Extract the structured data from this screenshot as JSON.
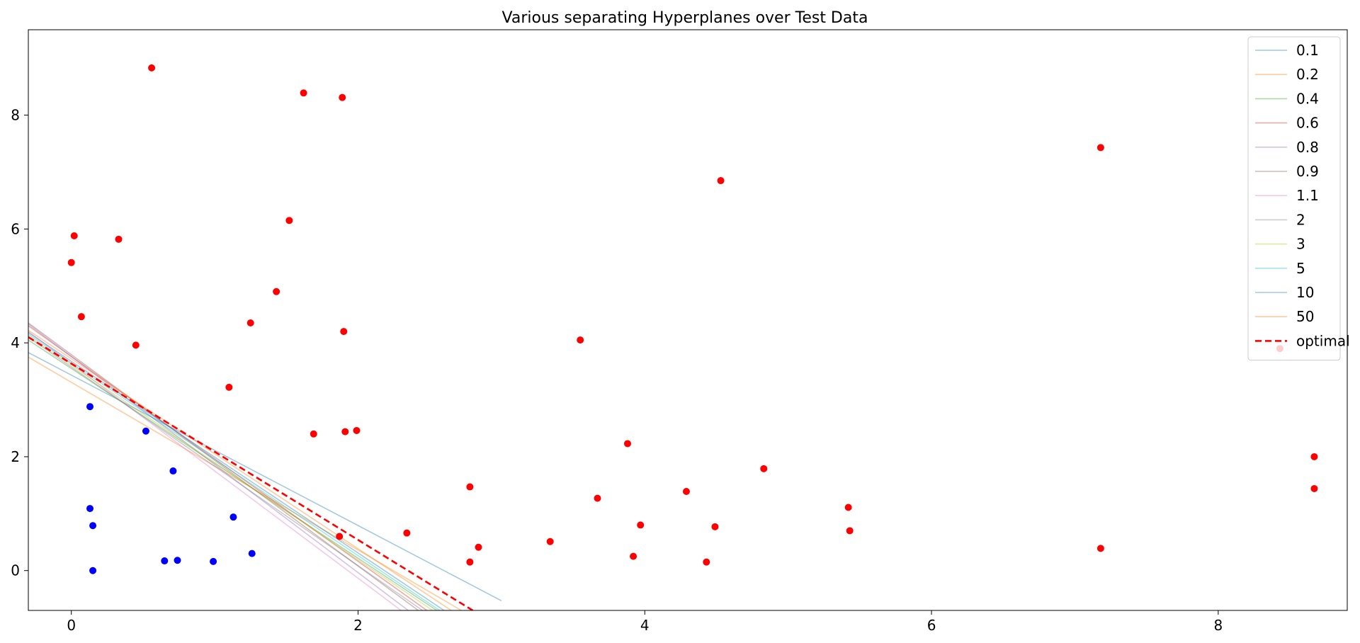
{
  "chart_data": {
    "type": "scatter",
    "title": "Various separating Hyperplanes over Test Data",
    "xlabel": "",
    "ylabel": "",
    "xlim": [
      -0.3,
      8.9
    ],
    "ylim": [
      -0.7,
      9.5
    ],
    "xticks": [
      0,
      2,
      4,
      6,
      8
    ],
    "yticks": [
      0,
      2,
      4,
      6,
      8
    ],
    "grid": false,
    "legend_position": "top-right",
    "points": {
      "blue_color": "#0000ff",
      "red_color": "#ff0000",
      "blue": [
        [
          0.13,
          2.88
        ],
        [
          0.52,
          2.45
        ],
        [
          0.71,
          1.75
        ],
        [
          0.13,
          1.09
        ],
        [
          0.15,
          0.79
        ],
        [
          0.15,
          0.0
        ],
        [
          0.65,
          0.17
        ],
        [
          0.74,
          0.18
        ],
        [
          0.99,
          0.16
        ],
        [
          1.13,
          0.94
        ],
        [
          1.26,
          0.3
        ]
      ],
      "red": [
        [
          0.56,
          8.83
        ],
        [
          1.62,
          8.39
        ],
        [
          1.89,
          8.31
        ],
        [
          0.02,
          5.88
        ],
        [
          0.33,
          5.82
        ],
        [
          0.0,
          5.41
        ],
        [
          0.07,
          4.46
        ],
        [
          1.52,
          6.15
        ],
        [
          1.43,
          4.9
        ],
        [
          1.25,
          4.35
        ],
        [
          1.9,
          4.2
        ],
        [
          0.45,
          3.96
        ],
        [
          1.1,
          3.22
        ],
        [
          1.69,
          2.4
        ],
        [
          1.91,
          2.44
        ],
        [
          1.99,
          2.46
        ],
        [
          1.87,
          0.6
        ],
        [
          2.34,
          0.66
        ],
        [
          2.78,
          1.47
        ],
        [
          2.78,
          0.15
        ],
        [
          2.84,
          0.41
        ],
        [
          3.34,
          0.51
        ],
        [
          3.55,
          4.05
        ],
        [
          3.67,
          1.27
        ],
        [
          3.88,
          2.23
        ],
        [
          3.92,
          0.25
        ],
        [
          3.97,
          0.8
        ],
        [
          4.29,
          1.39
        ],
        [
          4.43,
          0.15
        ],
        [
          4.49,
          0.77
        ],
        [
          4.53,
          6.85
        ],
        [
          4.83,
          1.79
        ],
        [
          5.42,
          1.11
        ],
        [
          5.43,
          0.7
        ],
        [
          7.18,
          7.43
        ],
        [
          7.18,
          0.39
        ],
        [
          8.43,
          3.9
        ],
        [
          8.67,
          2.0
        ],
        [
          8.67,
          1.44
        ]
      ]
    },
    "series": [
      {
        "name": "0.1",
        "color": "#1f77b4",
        "line": [
          [
            -0.3,
            3.83
          ],
          [
            3.0,
            -0.53
          ]
        ]
      },
      {
        "name": "0.2",
        "color": "#ff7f0e",
        "line": [
          [
            -0.3,
            3.75
          ],
          [
            2.72,
            -0.7
          ]
        ]
      },
      {
        "name": "0.4",
        "color": "#2ca02c",
        "line": [
          [
            -0.3,
            4.05
          ],
          [
            2.55,
            -0.7
          ]
        ]
      },
      {
        "name": "0.6",
        "color": "#d62728",
        "line": [
          [
            -0.3,
            4.3
          ],
          [
            2.48,
            -0.7
          ]
        ]
      },
      {
        "name": "0.8",
        "color": "#9467bd",
        "line": [
          [
            -0.3,
            4.33
          ],
          [
            2.35,
            -0.7
          ]
        ]
      },
      {
        "name": "0.9",
        "color": "#8c564b",
        "line": [
          [
            -0.3,
            4.35
          ],
          [
            2.42,
            -0.7
          ]
        ]
      },
      {
        "name": "1.1",
        "color": "#e377c2",
        "line": [
          [
            -0.3,
            4.2
          ],
          [
            2.3,
            -0.7
          ]
        ]
      },
      {
        "name": "2",
        "color": "#7f7f7f",
        "line": [
          [
            -0.3,
            4.1
          ],
          [
            2.45,
            -0.7
          ]
        ]
      },
      {
        "name": "3",
        "color": "#bcbd22",
        "line": [
          [
            -0.3,
            4.12
          ],
          [
            2.52,
            -0.7
          ]
        ]
      },
      {
        "name": "5",
        "color": "#17becf",
        "line": [
          [
            -0.3,
            4.15
          ],
          [
            2.57,
            -0.7
          ]
        ]
      },
      {
        "name": "10",
        "color": "#1f77b4",
        "line": [
          [
            -0.3,
            4.18
          ],
          [
            2.6,
            -0.7
          ]
        ]
      },
      {
        "name": "50",
        "color": "#ff7f0e",
        "line": [
          [
            -0.3,
            4.22
          ],
          [
            2.65,
            -0.7
          ]
        ]
      },
      {
        "name": "optimal",
        "color": "#ff0000",
        "dashed": true,
        "line": [
          [
            -0.3,
            4.1
          ],
          [
            2.8,
            -0.7
          ]
        ]
      }
    ]
  }
}
